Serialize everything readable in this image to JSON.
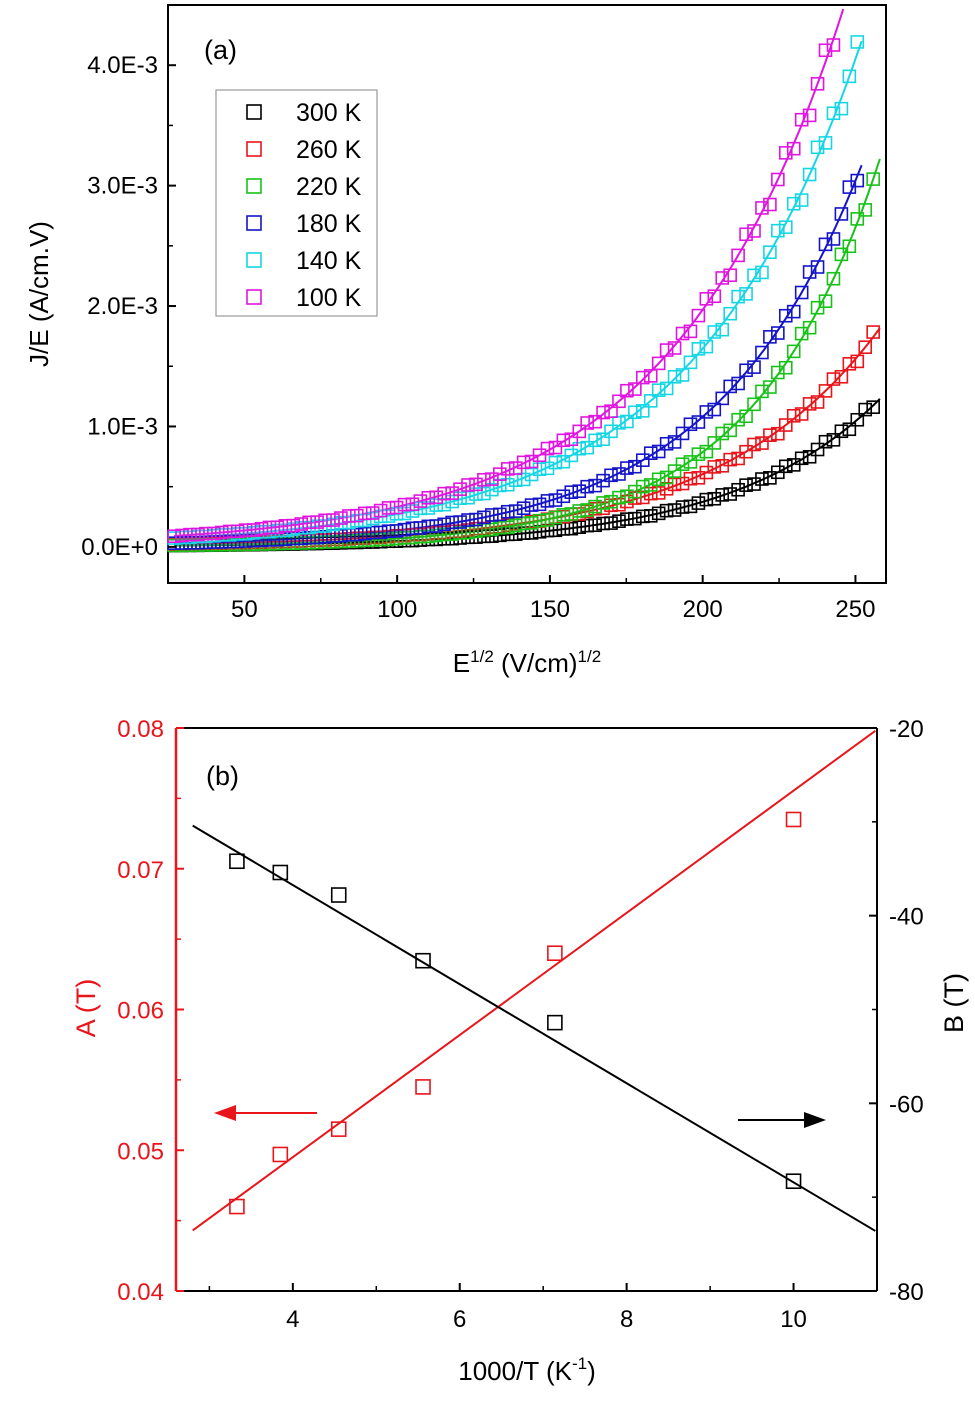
{
  "colors": {
    "axis": "#000000",
    "axis_left_b": "#e8151b",
    "s300": "#000000",
    "s260": "#e8151b",
    "s220": "#19c219",
    "s180": "#1414c8",
    "s140": "#16d6e6",
    "s100": "#e016e0",
    "A": "#e8151b",
    "B": "#000000"
  },
  "chart_data": [
    {
      "id": "a",
      "type": "scatter",
      "panel_label": "(a)",
      "title": "",
      "xlabel": {
        "main": "E",
        "sup1": "1/2",
        "mid": " (V/cm)",
        "sup2": "1/2"
      },
      "ylabel": "J/E (A/cm.V)",
      "xlim": [
        25,
        260
      ],
      "ylim": [
        -0.0003,
        0.0045
      ],
      "x_ticks": [
        50,
        100,
        150,
        200,
        250
      ],
      "x_tick_labels": [
        "50",
        "100",
        "150",
        "200",
        "250"
      ],
      "y_ticks": [
        0,
        0.001,
        0.002,
        0.003,
        0.004
      ],
      "y_tick_labels": [
        "0.0E+0",
        "1.0E-3",
        "2.0E-3",
        "3.0E-3",
        "4.0E-3"
      ],
      "legend_position": "top-left",
      "fit_model": "y = a*exp(b*x)",
      "series": [
        {
          "name": "300 K",
          "color_key": "s300",
          "x_range": [
            27,
            258
          ],
          "fit": {
            "a": 6.2e-06,
            "b": 0.0205
          }
        },
        {
          "name": "260 K",
          "color_key": "s260",
          "x_range": [
            27,
            258
          ],
          "fit": {
            "a": 1.35e-05,
            "b": 0.019
          }
        },
        {
          "name": "220 K",
          "color_key": "s220",
          "x_range": [
            27,
            258
          ],
          "fit": {
            "a": 6.1e-06,
            "b": 0.0243
          }
        },
        {
          "name": "180 K",
          "color_key": "s180",
          "x_range": [
            27,
            252
          ],
          "fit": {
            "a": 1.72e-05,
            "b": 0.0207
          }
        },
        {
          "name": "140 K",
          "color_key": "s140",
          "x_range": [
            27,
            252
          ],
          "fit": {
            "a": 4.5e-05,
            "b": 0.018
          }
        },
        {
          "name": "100 K",
          "color_key": "s100",
          "x_range": [
            27,
            246
          ],
          "fit": {
            "a": 5.6e-05,
            "b": 0.0178
          }
        }
      ]
    },
    {
      "id": "b",
      "type": "scatter",
      "panel_label": "(b)",
      "title": "",
      "xlabel": {
        "main": "1000/T (K",
        "sup1": "-1",
        "mid": ")",
        "sup2": ""
      },
      "ylabel_left": "A (T)",
      "ylabel_right": "B (T)",
      "xlim": [
        2.6,
        11.0
      ],
      "ylim_left": [
        0.04,
        0.08
      ],
      "ylim_right": [
        -80,
        -20
      ],
      "x_ticks": [
        4,
        6,
        8,
        10
      ],
      "x_tick_labels": [
        "4",
        "6",
        "8",
        "10"
      ],
      "y_left_ticks": [
        0.04,
        0.05,
        0.06,
        0.07,
        0.08
      ],
      "y_left_tick_labels": [
        "0.04",
        "0.05",
        "0.06",
        "0.07",
        "0.08"
      ],
      "y_right_ticks": [
        -80,
        -60,
        -40,
        -20
      ],
      "y_right_tick_labels": [
        "-80",
        "-60",
        "-40",
        "-20"
      ],
      "series": [
        {
          "name": "A (T)",
          "axis": "left",
          "color_key": "A",
          "x": [
            3.33,
            3.85,
            4.55,
            5.56,
            7.14,
            10.0
          ],
          "y": [
            0.046,
            0.0497,
            0.0515,
            0.0545,
            0.064,
            0.0735
          ],
          "fit_line": {
            "x": [
              2.8,
              10.98
            ],
            "y": [
              0.0443,
              0.0798
            ]
          }
        },
        {
          "name": "B (T)",
          "axis": "right",
          "color_key": "B",
          "x": [
            3.33,
            3.85,
            4.55,
            5.56,
            7.14,
            10.0
          ],
          "y": [
            -34.2,
            -35.4,
            -37.8,
            -44.8,
            -51.4,
            -68.3
          ],
          "fit_line": {
            "x": [
              2.8,
              10.98
            ],
            "y": [
              -30.4,
              -73.6
            ]
          }
        }
      ],
      "arrows": [
        {
          "name": "A-axis arrow",
          "direction": "left",
          "color_key": "A"
        },
        {
          "name": "B-axis arrow",
          "direction": "right",
          "color_key": "B"
        }
      ]
    }
  ]
}
